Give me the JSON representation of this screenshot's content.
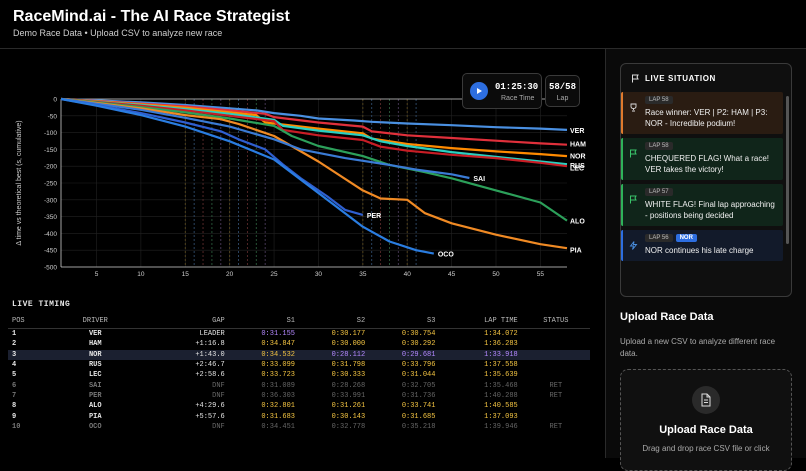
{
  "header": {
    "title": "RaceMind.ai - The AI Race Strategist",
    "subtitle": "Demo Race Data • Upload CSV to analyze new race"
  },
  "race_control": {
    "time": "01:25:30",
    "time_label": "Race Time",
    "lap": "58/58",
    "lap_label": "Lap"
  },
  "chart_data": {
    "type": "line",
    "title": "",
    "xlabel": "",
    "ylabel": "Δ time vs theoretical best (s, cumulative)",
    "xlim": [
      1,
      58
    ],
    "ylim": [
      -500,
      0
    ],
    "xticks": [
      5,
      10,
      15,
      20,
      25,
      30,
      35,
      40,
      45,
      50,
      55
    ],
    "yticks": [
      0,
      -50,
      -100,
      -150,
      -200,
      -250,
      -300,
      -350,
      -400,
      -450,
      -500
    ],
    "pit_laps": [
      15,
      16,
      17,
      18,
      19,
      20,
      21,
      22,
      23,
      24,
      35,
      36,
      37,
      38,
      39,
      40,
      41
    ],
    "series": [
      {
        "name": "VER",
        "color": "#4a90e2",
        "points": [
          [
            1,
            0
          ],
          [
            5,
            -4
          ],
          [
            10,
            -10
          ],
          [
            15,
            -18
          ],
          [
            17,
            -22
          ],
          [
            20,
            -28
          ],
          [
            23,
            -34
          ],
          [
            25,
            -42
          ],
          [
            28,
            -50
          ],
          [
            30,
            -58
          ],
          [
            34,
            -64
          ],
          [
            36,
            -68
          ],
          [
            40,
            -73
          ],
          [
            45,
            -78
          ],
          [
            50,
            -84
          ],
          [
            55,
            -88
          ],
          [
            58,
            -92
          ]
        ]
      },
      {
        "name": "HAM",
        "color": "#e0303b",
        "points": [
          [
            1,
            0
          ],
          [
            5,
            -6
          ],
          [
            10,
            -14
          ],
          [
            15,
            -22
          ],
          [
            20,
            -34
          ],
          [
            24,
            -44
          ],
          [
            25,
            -54
          ],
          [
            30,
            -70
          ],
          [
            35,
            -82
          ],
          [
            36,
            -96
          ],
          [
            40,
            -108
          ],
          [
            45,
            -116
          ],
          [
            50,
            -124
          ],
          [
            55,
            -132
          ],
          [
            58,
            -136
          ]
        ]
      },
      {
        "name": "NOR",
        "color": "#ff8a00",
        "points": [
          [
            1,
            0
          ],
          [
            5,
            -7
          ],
          [
            10,
            -16
          ],
          [
            15,
            -26
          ],
          [
            20,
            -40
          ],
          [
            23,
            -48
          ],
          [
            24,
            -70
          ],
          [
            30,
            -88
          ],
          [
            35,
            -102
          ],
          [
            36,
            -118
          ],
          [
            40,
            -134
          ],
          [
            45,
            -146
          ],
          [
            50,
            -156
          ],
          [
            55,
            -164
          ],
          [
            58,
            -170
          ]
        ]
      },
      {
        "name": "RUS",
        "color": "#2ad0c0",
        "points": [
          [
            1,
            0
          ],
          [
            5,
            -8
          ],
          [
            10,
            -18
          ],
          [
            15,
            -30
          ],
          [
            20,
            -44
          ],
          [
            25,
            -62
          ],
          [
            26,
            -80
          ],
          [
            30,
            -94
          ],
          [
            35,
            -108
          ],
          [
            37,
            -126
          ],
          [
            40,
            -140
          ],
          [
            45,
            -158
          ],
          [
            50,
            -172
          ],
          [
            55,
            -186
          ],
          [
            58,
            -194
          ]
        ]
      },
      {
        "name": "LEC",
        "color": "#c81d25",
        "points": [
          [
            1,
            0
          ],
          [
            5,
            -9
          ],
          [
            10,
            -20
          ],
          [
            15,
            -34
          ],
          [
            20,
            -50
          ],
          [
            25,
            -66
          ],
          [
            26,
            -92
          ],
          [
            30,
            -108
          ],
          [
            35,
            -122
          ],
          [
            37,
            -142
          ],
          [
            40,
            -154
          ],
          [
            45,
            -166
          ],
          [
            50,
            -176
          ],
          [
            55,
            -190
          ],
          [
            58,
            -200
          ]
        ]
      },
      {
        "name": "ALO",
        "color": "#2ca05a",
        "points": [
          [
            1,
            0
          ],
          [
            5,
            -10
          ],
          [
            10,
            -24
          ],
          [
            15,
            -40
          ],
          [
            20,
            -58
          ],
          [
            25,
            -80
          ],
          [
            27,
            -110
          ],
          [
            30,
            -140
          ],
          [
            35,
            -170
          ],
          [
            38,
            -196
          ],
          [
            42,
            -218
          ],
          [
            45,
            -236
          ],
          [
            50,
            -272
          ],
          [
            55,
            -308
          ],
          [
            58,
            -362
          ]
        ]
      },
      {
        "name": "PIA",
        "color": "#f08a24",
        "points": [
          [
            1,
            0
          ],
          [
            5,
            -12
          ],
          [
            10,
            -28
          ],
          [
            15,
            -48
          ],
          [
            19,
            -60
          ],
          [
            21,
            -74
          ],
          [
            25,
            -110
          ],
          [
            30,
            -186
          ],
          [
            35,
            -272
          ],
          [
            37,
            -296
          ],
          [
            40,
            -300
          ],
          [
            42,
            -340
          ],
          [
            45,
            -370
          ],
          [
            50,
            -404
          ],
          [
            55,
            -432
          ],
          [
            58,
            -444
          ]
        ]
      },
      {
        "name": "SAI",
        "color": "#3a7bd5",
        "points": [
          [
            1,
            0
          ],
          [
            5,
            -14
          ],
          [
            10,
            -32
          ],
          [
            15,
            -56
          ],
          [
            20,
            -82
          ],
          [
            25,
            -120
          ],
          [
            28,
            -150
          ],
          [
            33,
            -176
          ],
          [
            38,
            -196
          ],
          [
            41,
            -210
          ],
          [
            45,
            -224
          ],
          [
            47,
            -235
          ]
        ]
      },
      {
        "name": "PER",
        "color": "#2f5fd0",
        "points": [
          [
            1,
            0
          ],
          [
            5,
            -18
          ],
          [
            10,
            -42
          ],
          [
            15,
            -70
          ],
          [
            19,
            -96
          ],
          [
            21,
            -120
          ],
          [
            24,
            -150
          ],
          [
            26,
            -195
          ],
          [
            28,
            -236
          ],
          [
            31,
            -290
          ],
          [
            33,
            -330
          ],
          [
            35,
            -345
          ]
        ]
      },
      {
        "name": "OCO",
        "color": "#2a7de1",
        "points": [
          [
            1,
            0
          ],
          [
            5,
            -20
          ],
          [
            10,
            -48
          ],
          [
            15,
            -82
          ],
          [
            20,
            -126
          ],
          [
            25,
            -180
          ],
          [
            28,
            -240
          ],
          [
            31,
            -300
          ],
          [
            35,
            -380
          ],
          [
            38,
            -424
          ],
          [
            41,
            -450
          ],
          [
            43,
            -460
          ]
        ]
      }
    ],
    "end_labels": [
      {
        "name": "VER",
        "y": -92
      },
      {
        "name": "HAM",
        "y": -132
      },
      {
        "name": "NOR",
        "y": -168
      },
      {
        "name": "RUS",
        "y": -196
      },
      {
        "name": "LEC",
        "y": -204
      },
      {
        "name": "ALO",
        "y": -362
      },
      {
        "name": "PIA",
        "y": -448
      },
      {
        "name": "SAI",
        "y": -235,
        "x": 47
      },
      {
        "name": "PER",
        "y": -345,
        "x": 35
      },
      {
        "name": "OCO",
        "y": -460,
        "x": 43
      }
    ]
  },
  "timing": {
    "title": "LIVE TIMING",
    "headers": [
      "POS",
      "DRIVER",
      "GAP",
      "S1",
      "S2",
      "S3",
      "LAP TIME",
      "STATUS"
    ],
    "rows": [
      {
        "pos": "1",
        "driver": "VER",
        "gap": "LEADER",
        "s1": "0:31.155",
        "s2": "0:30.177",
        "s3": "0:30.754",
        "lap": "1:34.072",
        "status": "",
        "s1c": "purple",
        "s2c": "yellow",
        "s3c": "yellow",
        "lapc": "yellow"
      },
      {
        "pos": "2",
        "driver": "HAM",
        "gap": "+1:16.8",
        "s1": "0:34.847",
        "s2": "0:30.000",
        "s3": "0:30.292",
        "lap": "1:36.283",
        "status": "",
        "s1c": "yellow",
        "s2c": "yellow",
        "s3c": "yellow",
        "lapc": "yellow"
      },
      {
        "pos": "3",
        "driver": "NOR",
        "gap": "+1:43.0",
        "s1": "0:34.532",
        "s2": "0:28.112",
        "s3": "0:29.681",
        "lap": "1:33.918",
        "status": "",
        "s1c": "yellow",
        "s2c": "purple",
        "s3c": "purple",
        "lapc": "purple"
      },
      {
        "pos": "4",
        "driver": "RUS",
        "gap": "+2:46.7",
        "s1": "0:33.099",
        "s2": "0:31.798",
        "s3": "0:33.796",
        "lap": "1:37.558",
        "status": "",
        "s1c": "yellow",
        "s2c": "yellow",
        "s3c": "yellow",
        "lapc": "yellow"
      },
      {
        "pos": "5",
        "driver": "LEC",
        "gap": "+2:58.6",
        "s1": "0:33.723",
        "s2": "0:30.333",
        "s3": "0:31.044",
        "lap": "1:35.639",
        "status": "",
        "s1c": "yellow",
        "s2c": "yellow",
        "s3c": "yellow",
        "lapc": "yellow"
      },
      {
        "pos": "6",
        "driver": "SAI",
        "gap": "DNF",
        "s1": "0:31.089",
        "s2": "0:28.268",
        "s3": "0:32.705",
        "lap": "1:35.468",
        "status": "RET",
        "s1c": "grey",
        "s2c": "grey",
        "s3c": "grey",
        "lapc": "grey"
      },
      {
        "pos": "7",
        "driver": "PER",
        "gap": "DNF",
        "s1": "0:36.303",
        "s2": "0:33.991",
        "s3": "0:31.736",
        "lap": "1:40.288",
        "status": "RET",
        "s1c": "grey",
        "s2c": "grey",
        "s3c": "grey",
        "lapc": "grey"
      },
      {
        "pos": "8",
        "driver": "ALO",
        "gap": "+4:29.6",
        "s1": "0:32.801",
        "s2": "0:31.261",
        "s3": "0:33.741",
        "lap": "1:40.585",
        "status": "",
        "s1c": "yellow",
        "s2c": "yellow",
        "s3c": "yellow",
        "lapc": "yellow"
      },
      {
        "pos": "9",
        "driver": "PIA",
        "gap": "+5:57.6",
        "s1": "0:31.683",
        "s2": "0:30.143",
        "s3": "0:31.685",
        "lap": "1:37.093",
        "status": "",
        "s1c": "yellow",
        "s2c": "yellow",
        "s3c": "yellow",
        "lapc": "yellow"
      },
      {
        "pos": "10",
        "driver": "OCO",
        "gap": "DNF",
        "s1": "0:34.451",
        "s2": "0:32.778",
        "s3": "0:35.218",
        "lap": "1:39.946",
        "status": "RET",
        "s1c": "grey",
        "s2c": "grey",
        "s3c": "grey",
        "lapc": "grey"
      }
    ]
  },
  "live": {
    "title": "LIVE SITUATION",
    "events": [
      {
        "type": "win",
        "lap": "LAP 58",
        "text": "Race winner: VER | P2: HAM | P3: NOR - Incredible podium!"
      },
      {
        "type": "flag",
        "lap": "LAP 58",
        "text": "CHEQUERED FLAG! What a race! VER takes the victory!"
      },
      {
        "type": "flag",
        "lap": "LAP 57",
        "text": "WHITE FLAG! Final lap approaching - positions being decided"
      },
      {
        "type": "blue",
        "lap": "LAP 56",
        "driver": "NOR",
        "text": "NOR continues his late charge"
      }
    ]
  },
  "upload": {
    "title": "Upload Race Data",
    "desc": "Upload a new CSV to analyze different race data.",
    "dz_title": "Upload Race Data",
    "dz_desc": "Drag and drop race CSV file or click"
  }
}
